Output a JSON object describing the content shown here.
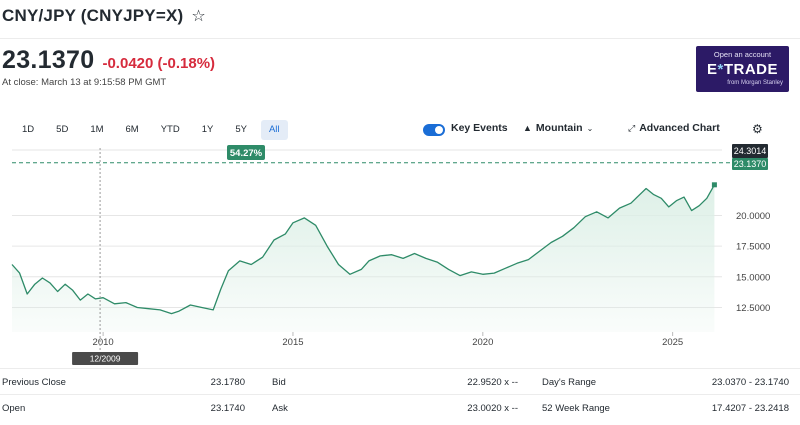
{
  "quote": {
    "title": "CNY/JPY (CNYJPY=X)",
    "watch_icon": "star-icon",
    "price": "23.1370",
    "change": "-0.0420 (-0.18%)",
    "close_time": "At close: March 13 at 9:15:58 PM GMT"
  },
  "ad": {
    "line1": "Open an account",
    "logo_pre": "E",
    "logo_x": "*",
    "logo_post": "TRADE",
    "line3": "from Morgan Stanley"
  },
  "ranges": [
    "1D",
    "5D",
    "1M",
    "6M",
    "YTD",
    "1Y",
    "5Y",
    "All"
  ],
  "active_range": "All",
  "toolbar": {
    "key_events": "Key Events",
    "mountain": "Mountain",
    "advanced": "Advanced Chart"
  },
  "colors": {
    "line": "#2e8b68",
    "negative": "#d62b3d",
    "accent": "#1a6dd6",
    "fill": "#dcefe6"
  },
  "chart_data": {
    "type": "area",
    "x_ticks": [
      "2010",
      "2015",
      "2020",
      "2025"
    ],
    "y_ticks": [
      "12.5000",
      "15.0000",
      "17.5000",
      "20.0000"
    ],
    "ylim": [
      10.5,
      25.5
    ],
    "xlim": [
      2007.6,
      2026.3
    ],
    "high_label": "24.3014",
    "last_label": "23.1370",
    "pct_label": "54.27%",
    "crosshair_label": "12/2009",
    "crosshair_x": 2009.92,
    "grid": true,
    "series": [
      {
        "x": [
          2007.6,
          2007.8,
          2008.0,
          2008.2,
          2008.4,
          2008.6,
          2008.8,
          2009.0,
          2009.2,
          2009.4,
          2009.6,
          2009.8,
          2010.0,
          2010.3,
          2010.6,
          2010.9,
          2011.2,
          2011.5,
          2011.8,
          2012.0,
          2012.3,
          2012.6,
          2012.9,
          2013.1,
          2013.3,
          2013.6,
          2013.9,
          2014.2,
          2014.5,
          2014.8,
          2015.0,
          2015.3,
          2015.6,
          2015.9,
          2016.2,
          2016.5,
          2016.8,
          2017.0,
          2017.3,
          2017.6,
          2017.9,
          2018.2,
          2018.5,
          2018.8,
          2019.1,
          2019.4,
          2019.7,
          2020.0,
          2020.3,
          2020.6,
          2020.9,
          2021.2,
          2021.5,
          2021.8,
          2022.1,
          2022.4,
          2022.7,
          2023.0,
          2023.3,
          2023.6,
          2023.9,
          2024.1,
          2024.3,
          2024.5,
          2024.7,
          2024.9,
          2025.1,
          2025.3,
          2025.5,
          2025.7,
          2025.9,
          2026.1
        ],
        "y": [
          16.0,
          15.3,
          13.6,
          14.4,
          14.9,
          14.5,
          13.8,
          14.4,
          13.9,
          13.1,
          13.6,
          13.2,
          13.3,
          12.8,
          12.9,
          12.5,
          12.4,
          12.3,
          12.0,
          12.2,
          12.7,
          12.5,
          12.3,
          14.0,
          15.5,
          16.3,
          16.0,
          16.6,
          18.0,
          18.5,
          19.4,
          19.8,
          19.2,
          17.5,
          16.0,
          15.2,
          15.6,
          16.3,
          16.7,
          16.8,
          16.5,
          16.9,
          16.5,
          16.2,
          15.6,
          15.1,
          15.4,
          15.2,
          15.3,
          15.7,
          16.1,
          16.4,
          17.1,
          17.8,
          18.3,
          19.0,
          19.9,
          20.3,
          19.8,
          20.6,
          21.0,
          21.6,
          22.2,
          21.7,
          21.4,
          20.7,
          21.2,
          21.5,
          20.4,
          20.8,
          21.4,
          22.5
        ]
      }
    ]
  },
  "stats": [
    {
      "label": "Previous Close",
      "value": "23.1780",
      "label2": "Bid",
      "value2": "22.9520 x --",
      "label3": "Day's Range",
      "value3": "23.0370 - 23.1740"
    },
    {
      "label": "Open",
      "value": "23.1740",
      "label2": "Ask",
      "value2": "23.0020 x --",
      "label3": "52 Week Range",
      "value3": "17.4207 - 23.2418"
    }
  ]
}
